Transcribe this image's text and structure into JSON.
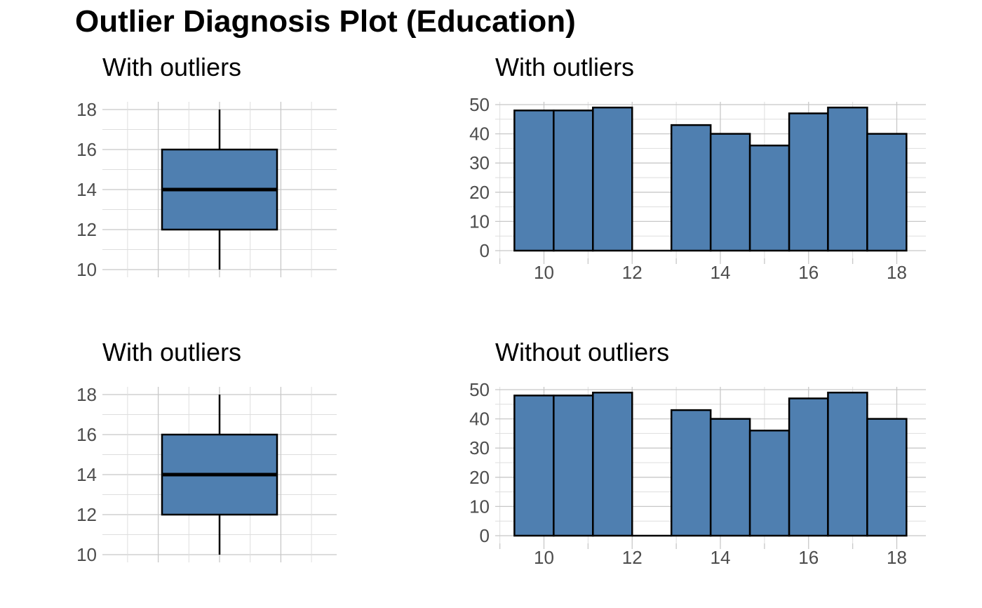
{
  "title": "Outlier Diagnosis Plot (Education)",
  "colors": {
    "fill": "#4f7fb0",
    "outline": "#000000"
  },
  "chart_data": [
    {
      "type": "boxplot",
      "title": "With outliers",
      "ylim": [
        10,
        18
      ],
      "y_ticks": [
        10,
        12,
        14,
        16,
        18
      ],
      "y_tick_labels": [
        "10",
        "12",
        "14",
        "16",
        "18"
      ],
      "stats": {
        "min": 10,
        "q1": 12,
        "median": 14,
        "q3": 16,
        "max": 18
      },
      "grid": true
    },
    {
      "type": "bar",
      "title": "With outliers",
      "xlim": [
        9.1,
        18.8
      ],
      "ylim": [
        0,
        50
      ],
      "x_ticks": [
        10,
        12,
        14,
        16,
        18
      ],
      "x_tick_labels": [
        "10",
        "12",
        "14",
        "16",
        "18"
      ],
      "y_ticks": [
        0,
        10,
        20,
        30,
        40,
        50
      ],
      "y_tick_labels": [
        "0",
        "10",
        "20",
        "30",
        "40",
        "50"
      ],
      "bin_edges": [
        9.33,
        10.22,
        11.11,
        12.0,
        12.89,
        13.78,
        14.67,
        15.56,
        16.44,
        17.33,
        18.22
      ],
      "values": [
        48,
        48,
        49,
        0,
        43,
        40,
        36,
        47,
        49,
        40
      ],
      "grid": true
    },
    {
      "type": "boxplot",
      "title": "With outliers",
      "ylim": [
        10,
        18
      ],
      "y_ticks": [
        10,
        12,
        14,
        16,
        18
      ],
      "y_tick_labels": [
        "10",
        "12",
        "14",
        "16",
        "18"
      ],
      "stats": {
        "min": 10,
        "q1": 12,
        "median": 14,
        "q3": 16,
        "max": 18
      },
      "grid": true
    },
    {
      "type": "bar",
      "title": "Without outliers",
      "xlim": [
        9.1,
        18.8
      ],
      "ylim": [
        0,
        50
      ],
      "x_ticks": [
        10,
        12,
        14,
        16,
        18
      ],
      "x_tick_labels": [
        "10",
        "12",
        "14",
        "16",
        "18"
      ],
      "y_ticks": [
        0,
        10,
        20,
        30,
        40,
        50
      ],
      "y_tick_labels": [
        "0",
        "10",
        "20",
        "30",
        "40",
        "50"
      ],
      "bin_edges": [
        9.33,
        10.22,
        11.11,
        12.0,
        12.89,
        13.78,
        14.67,
        15.56,
        16.44,
        17.33,
        18.22
      ],
      "values": [
        48,
        48,
        49,
        0,
        43,
        40,
        36,
        47,
        49,
        40
      ],
      "grid": true
    }
  ]
}
